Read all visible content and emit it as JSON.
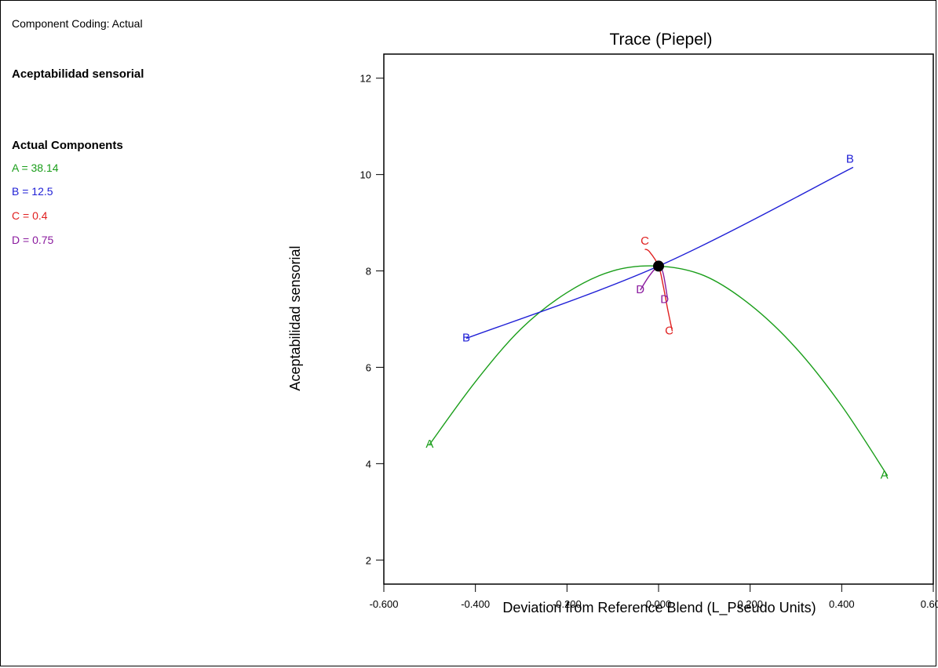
{
  "legend_panel": {
    "coding": "Component Coding: Actual",
    "response": "Aceptabilidad sensorial",
    "components_title": "Actual Components",
    "components": [
      {
        "text": "A = 38.14",
        "color": "#1a9e1a"
      },
      {
        "text": "B = 12.5",
        "color": "#1f1fd6"
      },
      {
        "text": "C = 0.4",
        "color": "#e02020"
      },
      {
        "text": "D = 0.75",
        "color": "#8a1a9e"
      }
    ]
  },
  "chart_data": {
    "type": "line",
    "title": "Trace (Piepel)",
    "xlabel": "Deviation from Reference Blend (L_Pseudo Units)",
    "ylabel": "Aceptabilidad sensorial",
    "xlim": [
      -0.6,
      0.6
    ],
    "ylim": [
      1.5,
      12.5
    ],
    "xticks": [
      -0.6,
      -0.4,
      -0.2,
      0.0,
      0.2,
      0.4,
      0.6
    ],
    "xtick_labels": [
      "-0.600",
      "-0.400",
      "-0.200",
      "0.000",
      "0.200",
      "0.400",
      "0.600"
    ],
    "yticks": [
      2,
      4,
      6,
      8,
      10,
      12
    ],
    "ytick_labels": [
      "2",
      "4",
      "6",
      "8",
      "10",
      "12"
    ],
    "reference_point": {
      "x": 0.0,
      "y": 8.1
    },
    "series": [
      {
        "name": "A",
        "color": "#1a9e1a",
        "x": [
          -0.5,
          -0.4,
          -0.3,
          -0.2,
          -0.1,
          0.0,
          0.1,
          0.2,
          0.3,
          0.4,
          0.5
        ],
        "y": [
          4.4,
          5.7,
          6.8,
          7.55,
          8.0,
          8.1,
          7.9,
          7.3,
          6.4,
          5.2,
          3.75
        ]
      },
      {
        "name": "B",
        "color": "#1f1fd6",
        "x": [
          -0.42,
          0.0,
          0.425
        ],
        "y": [
          6.6,
          8.1,
          10.15
        ]
      },
      {
        "name": "C",
        "color": "#e02020",
        "x": [
          -0.03,
          -0.02,
          0.0,
          0.01,
          0.02,
          0.03
        ],
        "y": [
          8.45,
          8.4,
          8.1,
          7.7,
          7.2,
          6.75
        ]
      },
      {
        "name": "D",
        "color": "#8a1a9e",
        "x": [
          -0.04,
          -0.02,
          0.0,
          0.01,
          0.02
        ],
        "y": [
          7.6,
          7.9,
          8.1,
          7.95,
          7.4
        ]
      }
    ]
  }
}
